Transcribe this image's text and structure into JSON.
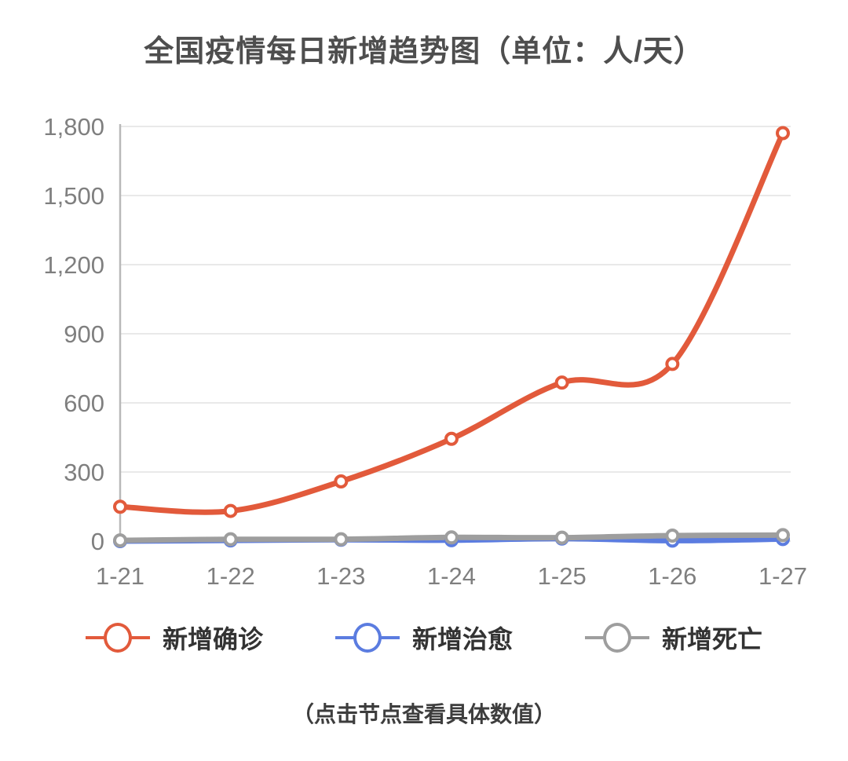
{
  "page": {
    "title": "全国疫情每日新增趋势图（单位：人/天）",
    "note": "（点击节点查看具体数值）"
  },
  "chart_data": {
    "type": "line",
    "title": "全国疫情每日新增趋势图（单位：人/天）",
    "categories": [
      "1-21",
      "1-22",
      "1-23",
      "1-24",
      "1-25",
      "1-26",
      "1-27"
    ],
    "series": [
      {
        "name": "新增确诊",
        "color": "#e25a3b",
        "values": [
          149,
          131,
          259,
          444,
          688,
          769,
          1771
        ]
      },
      {
        "name": "新增治愈",
        "color": "#5b7ce0",
        "values": [
          0,
          3,
          6,
          4,
          11,
          2,
          9
        ]
      },
      {
        "name": "新增死亡",
        "color": "#9e9e9e",
        "values": [
          3,
          8,
          8,
          16,
          15,
          24,
          26
        ]
      }
    ],
    "ylim": [
      0,
      1800
    ],
    "ytick_step": 300,
    "xlabel": "",
    "ylabel": "",
    "grid": true,
    "legend_position": "bottom",
    "note": "（点击节点查看具体数值）"
  },
  "colors": {
    "confirmed": "#e25a3b",
    "cured": "#5b7ce0",
    "deaths": "#9e9e9e",
    "gridline": "#e9e9e9",
    "axis": "#b9b9b9",
    "tick_label": "#7f7f7f",
    "title_text": "#4e4e4e",
    "legend_text": "#333333"
  }
}
